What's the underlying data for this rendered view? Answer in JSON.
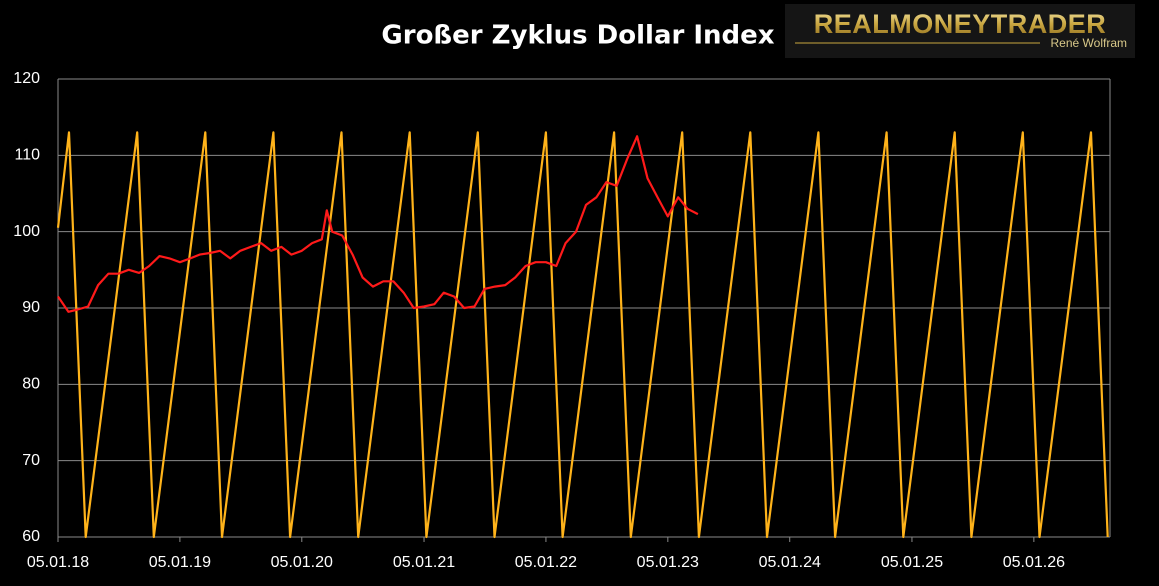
{
  "chart_data": {
    "type": "line",
    "title": "Großer Zyklus Dollar Index",
    "logo": {
      "name": "REALMONEYTRADER",
      "subtitle": "René Wolfram"
    },
    "xlim": [
      "05.01.18",
      "21.08.26"
    ],
    "xticks": [
      "05.01.18",
      "05.01.19",
      "05.01.20",
      "05.01.21",
      "05.01.22",
      "05.01.23",
      "05.01.24",
      "05.01.25",
      "05.01.26"
    ],
    "ylim": [
      60,
      120
    ],
    "yticks": [
      60,
      70,
      80,
      90,
      100,
      110,
      120
    ],
    "grid": true,
    "series": [
      {
        "color": "#ffb31a",
        "x": [
          "05.01.18",
          "07.02.18",
          "29.03.18",
          "30.08.18",
          "19.10.18",
          "22.03.19",
          "11.05.19",
          "12.10.19",
          "01.12.19",
          "03.05.20",
          "22.06.20",
          "23.11.20",
          "12.01.21",
          "15.06.21",
          "04.08.21",
          "05.01.22",
          "24.02.22",
          "28.07.22",
          "16.09.22",
          "17.02.23",
          "08.04.23",
          "09.09.23",
          "29.10.23",
          "31.03.24",
          "20.05.24",
          "21.10.24",
          "10.12.24",
          "13.05.25",
          "02.07.25",
          "03.12.25",
          "22.01.26",
          "25.06.26",
          "14.08.26"
        ],
        "values": [
          100.5,
          113,
          60,
          113,
          60,
          113,
          60,
          113,
          60,
          113,
          60,
          113,
          60,
          113,
          60,
          113,
          60,
          113,
          60,
          113,
          60,
          113,
          60,
          113,
          60,
          113,
          60,
          113,
          60,
          113,
          60,
          113,
          60
        ]
      },
      {
        "color": "#ff1a1a",
        "x": [
          "05.01.18",
          "05.02.18",
          "05.03.18",
          "05.04.18",
          "05.05.18",
          "05.06.18",
          "05.07.18",
          "05.08.18",
          "05.09.18",
          "05.10.18",
          "05.11.18",
          "05.12.18",
          "05.01.19",
          "05.02.19",
          "05.03.19",
          "05.04.19",
          "05.05.19",
          "05.06.19",
          "05.07.19",
          "05.08.19",
          "05.09.19",
          "05.10.19",
          "05.11.19",
          "05.12.19",
          "05.01.20",
          "05.02.20",
          "05.03.20",
          "20.03.20",
          "05.04.20",
          "05.05.20",
          "05.06.20",
          "05.07.20",
          "05.08.20",
          "05.09.20",
          "05.10.20",
          "05.11.20",
          "05.12.20",
          "05.01.21",
          "05.02.21",
          "05.03.21",
          "05.04.21",
          "05.05.21",
          "05.06.21",
          "05.07.21",
          "05.08.21",
          "05.09.21",
          "05.10.21",
          "05.11.21",
          "05.12.21",
          "05.01.22",
          "05.02.22",
          "05.03.22",
          "05.04.22",
          "05.05.22",
          "05.06.22",
          "05.07.22",
          "05.08.22",
          "05.09.22",
          "05.10.22",
          "05.11.22",
          "05.12.22",
          "05.01.23",
          "05.02.23",
          "05.03.23",
          "05.04.23"
        ],
        "values": [
          91.5,
          89.5,
          89.8,
          90.2,
          93,
          94.5,
          94.5,
          95,
          94.6,
          95.5,
          96.8,
          96.5,
          96,
          96.5,
          97,
          97.2,
          97.5,
          96.5,
          97.5,
          98,
          98.5,
          97.5,
          98,
          97,
          97.5,
          98.5,
          99,
          102.8,
          100,
          99.5,
          97,
          94,
          92.8,
          93.5,
          93.5,
          92,
          90,
          90.2,
          90.5,
          92,
          91.5,
          90,
          90.2,
          92.5,
          92.8,
          93,
          94,
          95.5,
          96,
          96,
          95.5,
          98.5,
          100,
          103.5,
          104.5,
          106.5,
          106,
          109.5,
          112.5,
          107,
          104.5,
          102,
          104.5,
          103,
          102.3
        ]
      }
    ]
  }
}
